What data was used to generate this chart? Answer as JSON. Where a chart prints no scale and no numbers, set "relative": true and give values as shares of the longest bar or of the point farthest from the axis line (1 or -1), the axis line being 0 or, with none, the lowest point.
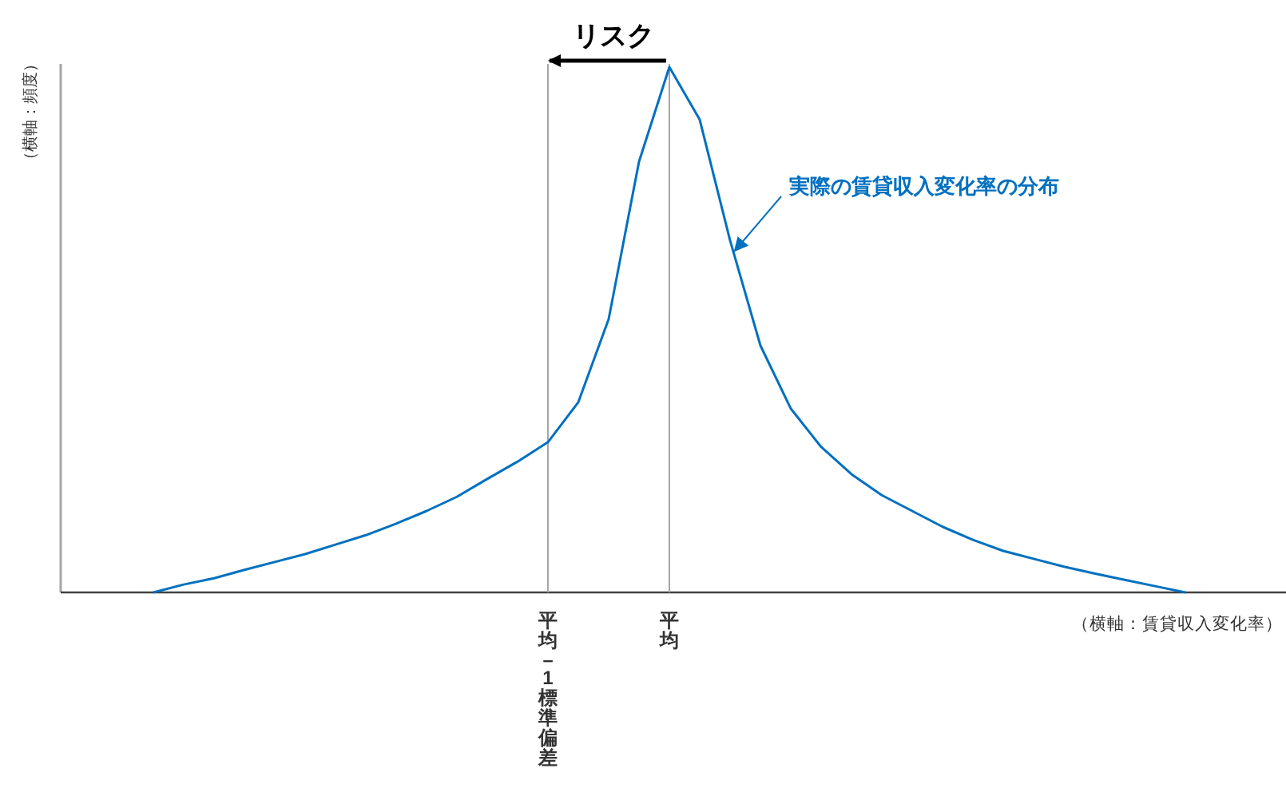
{
  "chart_data": {
    "type": "line",
    "relative": true,
    "xlabel": "（横軸：賃貸収入変化率）",
    "categories": [
      null,
      null,
      null,
      null,
      null,
      null,
      null,
      null,
      null,
      null,
      null,
      null,
      null,
      "平均－1標準偏差",
      null,
      null,
      null,
      "平均",
      null,
      null,
      null,
      null,
      null,
      null,
      null,
      null,
      null,
      null,
      null,
      null,
      null,
      null,
      null,
      null,
      null
    ],
    "series": [
      {
        "color": "#0070c0",
        "values": [
          0,
          0.015,
          0.027,
          0.043,
          0.058,
          0.073,
          0.091,
          0.109,
          0.131,
          0.155,
          0.182,
          0.216,
          0.249,
          0.286,
          0.362,
          0.52,
          0.82,
          1.0,
          0.9,
          0.67,
          0.47,
          0.35,
          0.277,
          0.225,
          0.185,
          0.155,
          0.125,
          0.1,
          0.079,
          0.064,
          0.049,
          0.036,
          0.024,
          0.012,
          0
        ]
      }
    ],
    "ref_lines": [
      {
        "axis": "x",
        "value": "平均－1標準偏差",
        "color": "#a6a6a6"
      },
      {
        "axis": "x",
        "value": "平均",
        "color": "#a6a6a6"
      }
    ],
    "annotations": [
      "リスク",
      "実際の賃貸収入変化率の分布",
      "（横軸：頻度）"
    ],
    "legend": false,
    "grid": false,
    "marker": "none",
    "line_style": "solid"
  }
}
